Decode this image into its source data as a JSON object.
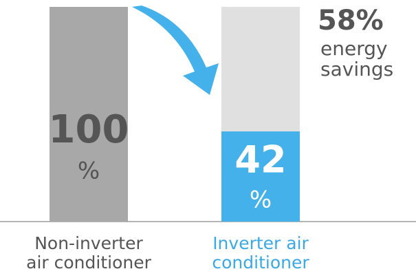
{
  "chart_data": {
    "type": "bar",
    "categories": [
      "Non-inverter\nair conditioner",
      "Inverter air\nconditioner"
    ],
    "values": [
      100,
      42
    ],
    "unit": "%",
    "colors": [
      "#a8a8a8",
      "#45b1ea"
    ],
    "label_colors": [
      "#555555",
      "#3aa9e6"
    ],
    "value_label_colors": [
      "#555555",
      "#ffffff"
    ],
    "ylim": [
      0,
      100
    ],
    "annotation": {
      "value": 58,
      "label": "58%",
      "text": "energy\nsavings",
      "color": "#e0e0e0"
    }
  }
}
